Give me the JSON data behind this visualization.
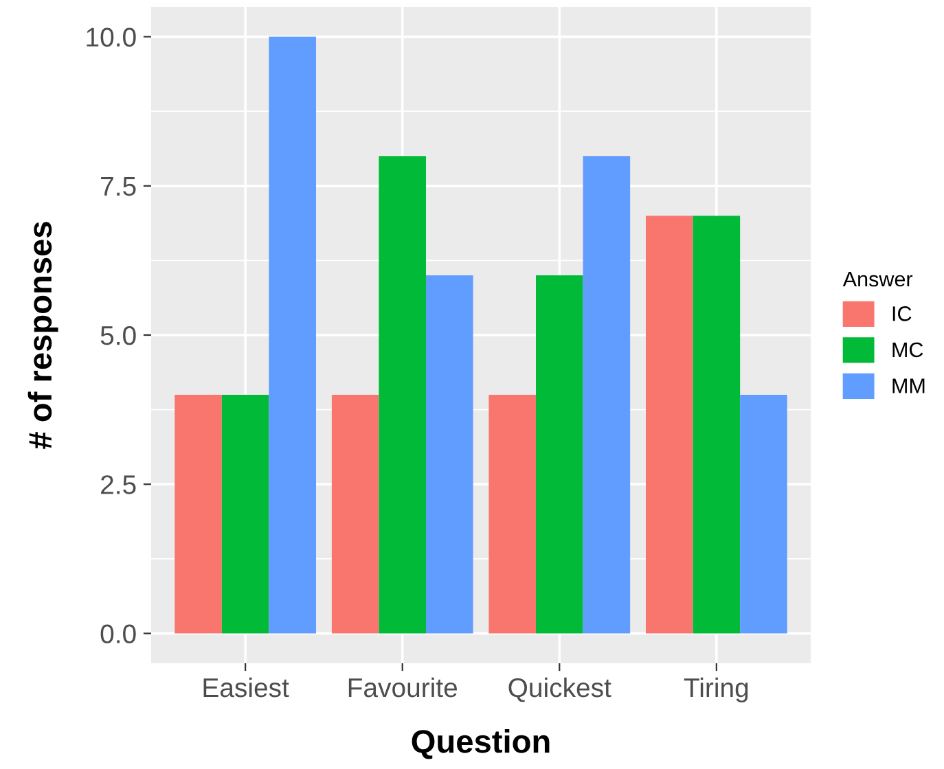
{
  "chart_data": {
    "type": "bar",
    "xlabel": "Question",
    "ylabel": "# of responses",
    "legend_title": "Answer",
    "categories": [
      "Easiest",
      "Favourite",
      "Quickest",
      "Tiring"
    ],
    "series": [
      {
        "name": "IC",
        "color": "#f8766d",
        "values": [
          4,
          4,
          4,
          7
        ]
      },
      {
        "name": "MC",
        "color": "#00ba38",
        "values": [
          4,
          8,
          6,
          7
        ]
      },
      {
        "name": "MM",
        "color": "#619cff",
        "values": [
          10,
          6,
          8,
          4
        ]
      }
    ],
    "ylim": [
      -0.5,
      10.5
    ],
    "yticks": [
      {
        "value": 0,
        "label": "0.0"
      },
      {
        "value": 2.5,
        "label": "2.5"
      },
      {
        "value": 5,
        "label": "5.0"
      },
      {
        "value": 7.5,
        "label": "7.5"
      },
      {
        "value": 10,
        "label": "10.0"
      }
    ],
    "grid": true,
    "legend": "right"
  }
}
